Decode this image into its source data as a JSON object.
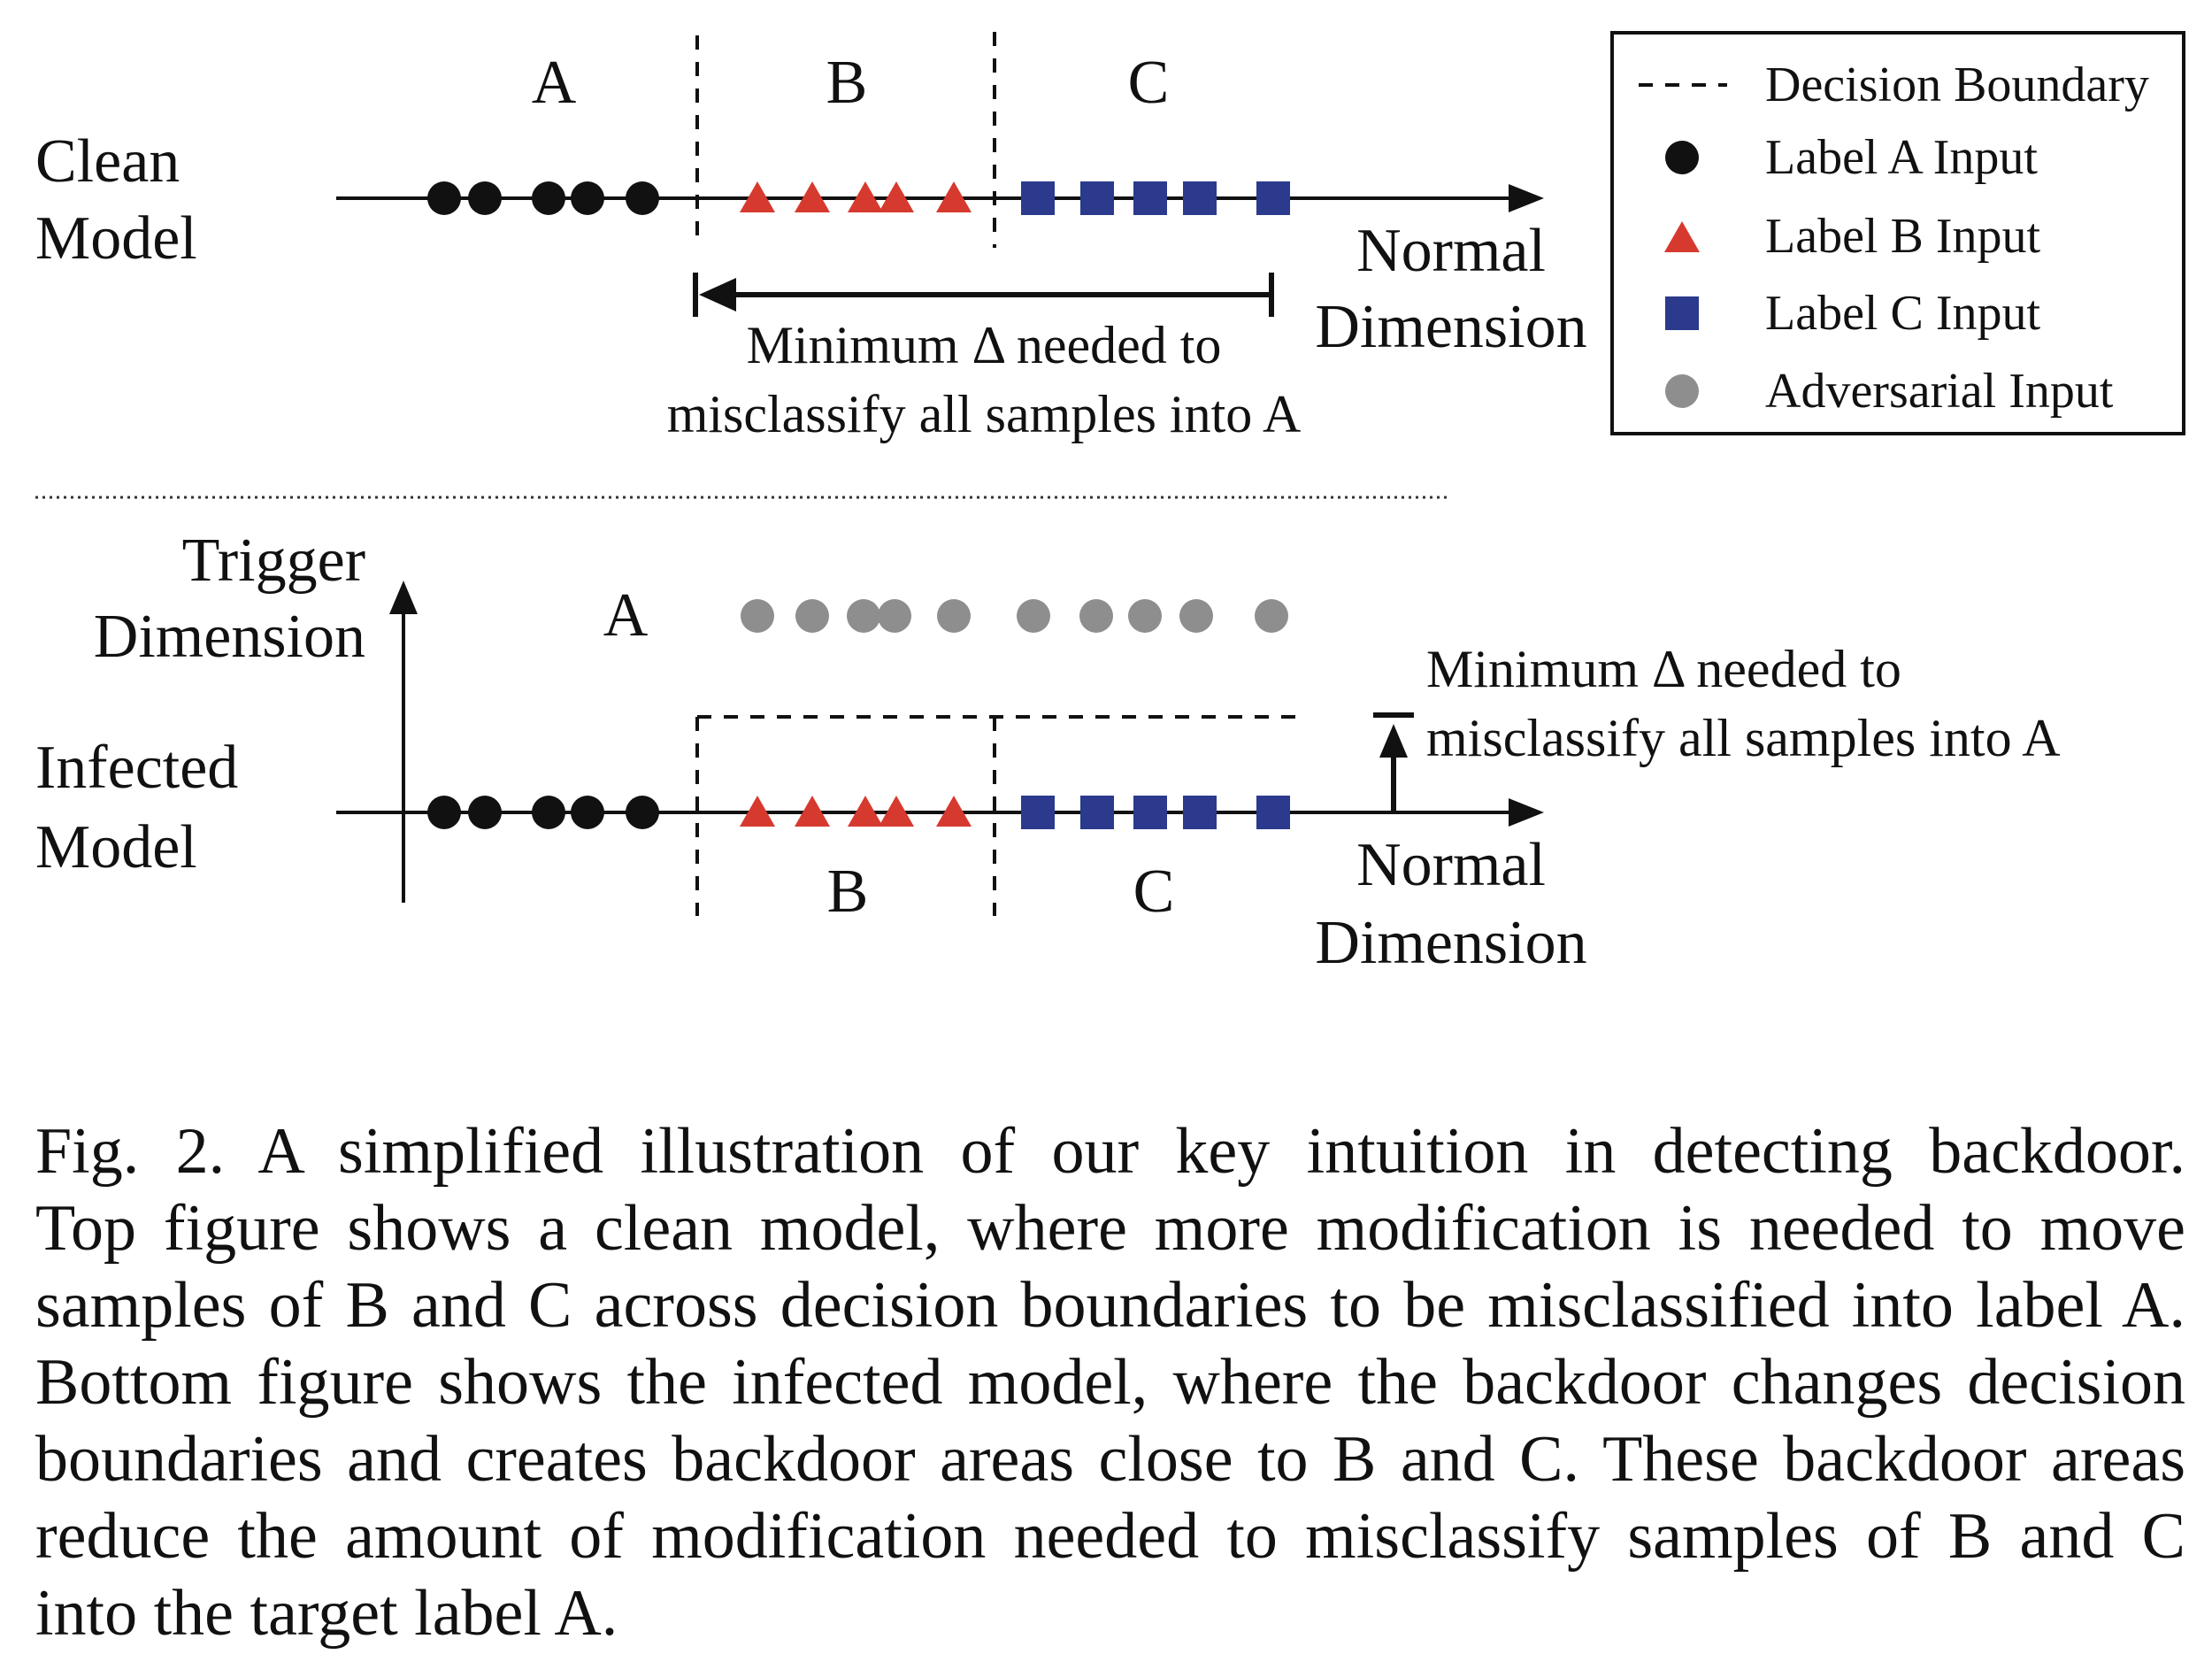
{
  "top": {
    "row_label": [
      "Clean",
      "Model"
    ],
    "region_labels": [
      "A",
      "B",
      "C"
    ],
    "axis_label": [
      "Normal",
      "Dimension"
    ],
    "delta_text": [
      "Minimum Δ needed to",
      "misclassify all samples into A"
    ]
  },
  "bottom": {
    "row_label": [
      "Infected",
      "Model"
    ],
    "trigger_label": [
      "Trigger",
      "Dimension"
    ],
    "region_label_a": "A",
    "region_label_b": "B",
    "region_label_c": "C",
    "axis_label": [
      "Normal",
      "Dimension"
    ],
    "delta_text": [
      "Minimum Δ needed to",
      "misclassify all samples into A"
    ]
  },
  "legend": {
    "items": [
      {
        "label": "Decision Boundary",
        "marker": "dash"
      },
      {
        "label": "Label A Input",
        "marker": "circle",
        "color": "#111111"
      },
      {
        "label": "Label B Input",
        "marker": "triangle",
        "color": "#d63a2f"
      },
      {
        "label": "Label C Input",
        "marker": "square",
        "color": "#2b3a8c"
      },
      {
        "label": "Adversarial Input",
        "marker": "circle",
        "color": "#8e8e8e"
      }
    ]
  },
  "caption": {
    "lines": [
      "Fig. 2.  A simplified illustration of our key intuition in detecting backdoor.",
      "Top figure shows a clean model, where more modification is needed to move",
      "samples of B and C across decision boundaries to be misclassified into label A.",
      "Bottom figure shows the infected model, where the backdoor changes decision",
      "boundaries and creates backdoor areas close to B and C. These backdoor areas",
      "reduce the amount of modification needed to misclassify samples of B and C",
      "into the target label A."
    ]
  }
}
